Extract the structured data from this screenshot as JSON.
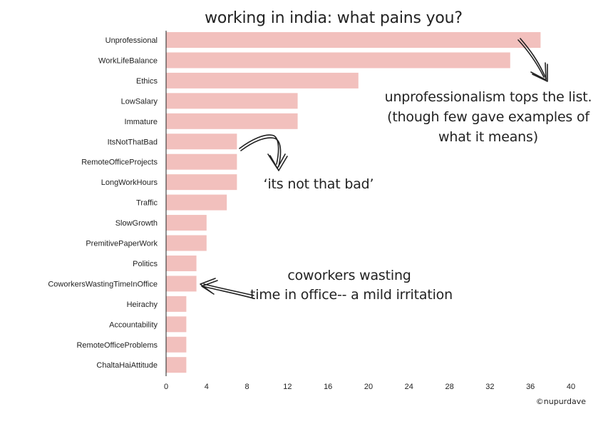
{
  "chart_data": {
    "type": "bar",
    "orientation": "horizontal",
    "title": "working in india: what pains you?",
    "categories": [
      "Unprofessional",
      "WorkLifeBalance",
      "Ethics",
      "LowSalary",
      "Immature",
      "ItsNotThatBad",
      "RemoteOfficeProjects",
      "LongWorkHours",
      "Traffic",
      "SlowGrowth",
      "PremitivePaperWork",
      "Politics",
      "CoworkersWastingTimeInOffice",
      "Heirachy",
      "Accountability",
      "RemoteOfficeProblems",
      "ChaltaHaiAttitude"
    ],
    "values": [
      37,
      34,
      19,
      13,
      13,
      7,
      7,
      7,
      6,
      4,
      4,
      3,
      3,
      2,
      2,
      2,
      2
    ],
    "xlim": [
      0,
      40
    ],
    "xticks": [
      "0",
      "4",
      "8",
      "12",
      "16",
      "20",
      "24",
      "28",
      "32",
      "36",
      "40"
    ],
    "bar_color": "#f2c0bd",
    "grid": false,
    "annotations": [
      {
        "id": "unprofessional-note",
        "lines": [
          "unprofessionalism tops the list.",
          "(though few gave examples of",
          "what it means)"
        ]
      },
      {
        "id": "not-that-bad-note",
        "lines": [
          "‘its not that bad’"
        ]
      },
      {
        "id": "coworkers-note",
        "lines": [
          "coworkers wasting",
          "time in office-- a mild irritation"
        ]
      }
    ],
    "credit": "©nupurdave"
  }
}
